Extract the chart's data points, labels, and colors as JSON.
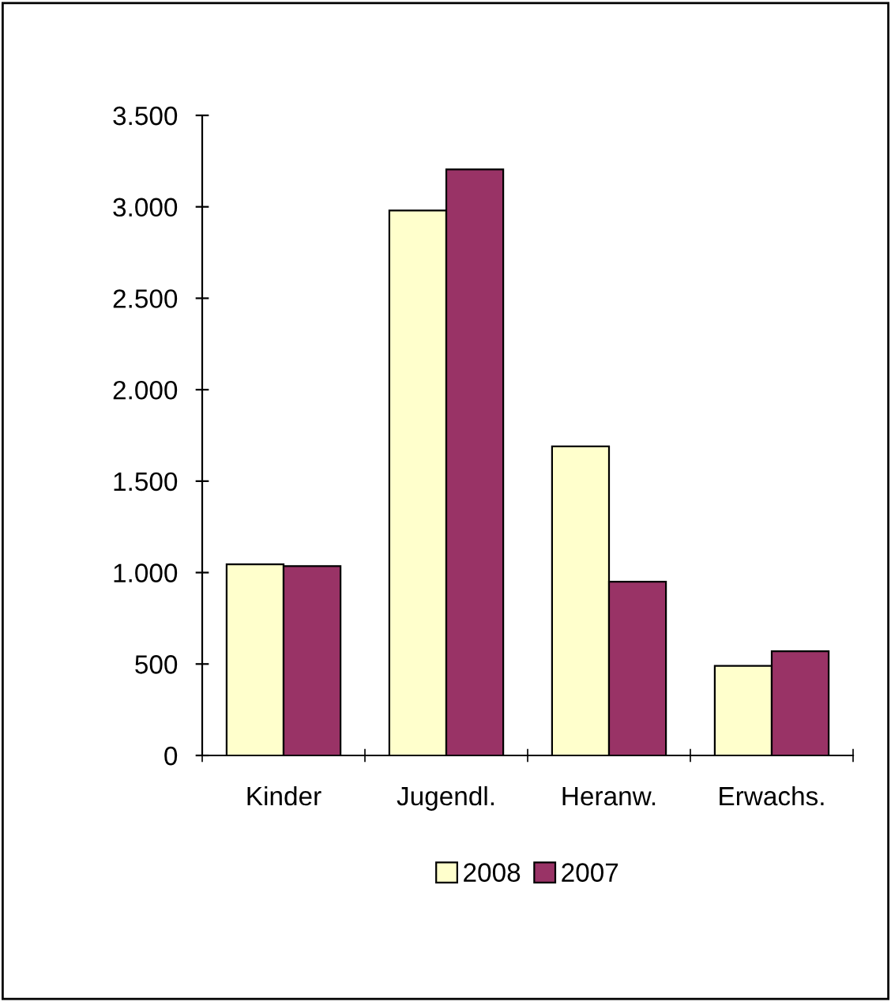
{
  "chart_data": {
    "type": "bar",
    "categories": [
      "Kinder",
      "Jugendl.",
      "Heranw.",
      "Erwachs."
    ],
    "series": [
      {
        "name": "2008",
        "color": "#ffffcc",
        "values": [
          1045,
          2980,
          1690,
          490
        ]
      },
      {
        "name": "2007",
        "color": "#993366",
        "values": [
          1035,
          3205,
          950,
          570
        ]
      }
    ],
    "ylim": [
      0,
      3500
    ],
    "yticks": [
      0,
      {
        "value": 500,
        "label": "500"
      },
      {
        "value": 1000,
        "label": "1.000"
      },
      {
        "value": 1500,
        "label": "1.500"
      },
      {
        "value": 2000,
        "label": "2.000"
      },
      {
        "value": 2500,
        "label": "2.500"
      },
      {
        "value": 3000,
        "label": "3.000"
      },
      {
        "value": 3500,
        "label": "3.500"
      }
    ],
    "grid": false,
    "legend": "bottom"
  }
}
